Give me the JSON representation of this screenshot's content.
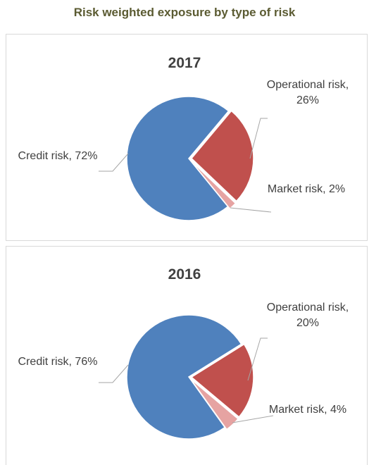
{
  "title": "Risk weighted exposure by type of risk",
  "chart_data": [
    {
      "type": "pie",
      "title": "2017",
      "values": [
        72,
        26,
        2
      ],
      "value_labels": [
        "Credit risk, 72%",
        "Operational risk, 26%",
        "Market risk, 2%"
      ],
      "colors": [
        "#4f81bd",
        "#c0504d",
        "#e6a3a2"
      ]
    },
    {
      "type": "pie",
      "title": "2016",
      "values": [
        76,
        20,
        4
      ],
      "value_labels": [
        "Credit risk, 76%",
        "Operational risk, 20%",
        "Market risk, 4%"
      ],
      "colors": [
        "#4f81bd",
        "#c0504d",
        "#e6a3a2"
      ]
    }
  ]
}
